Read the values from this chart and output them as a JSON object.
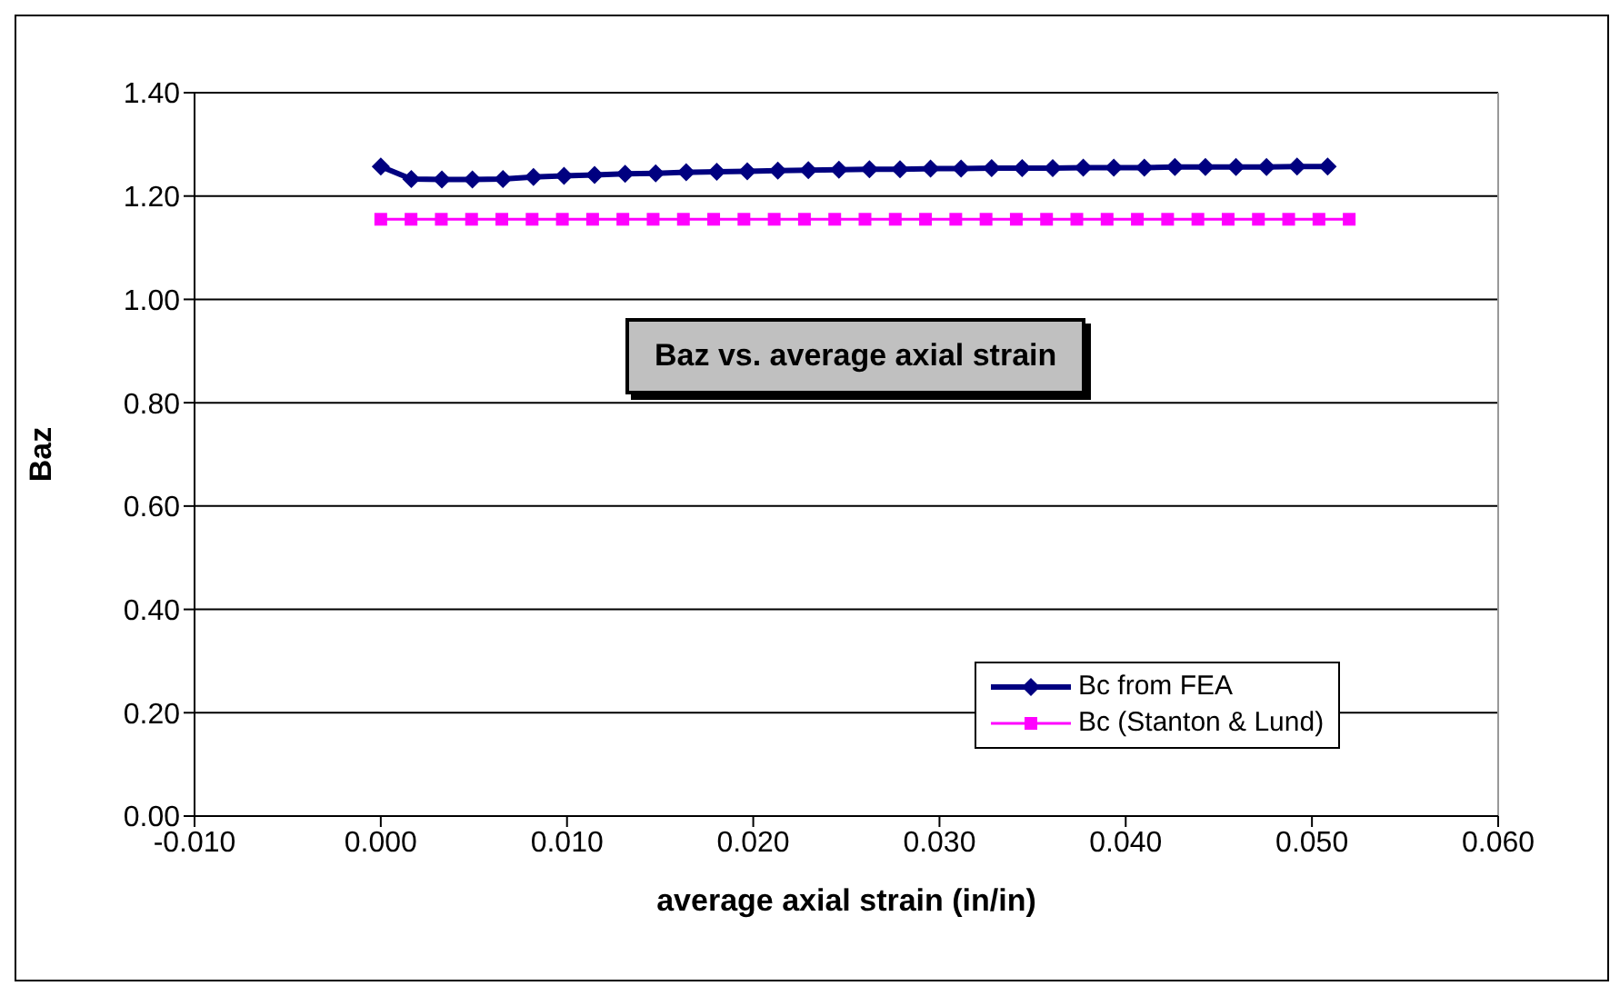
{
  "chart_data": {
    "type": "line",
    "title": "Baz vs. average axial strain",
    "xlabel": "average axial strain (in/in)",
    "ylabel": "Baz",
    "xlim": [
      -0.01,
      0.06
    ],
    "xticks": [
      {
        "value": -0.01,
        "label": "-0.010"
      },
      {
        "value": 0,
        "label": "0.000"
      },
      {
        "value": 0.01,
        "label": "0.010"
      },
      {
        "value": 0.02,
        "label": "0.020"
      },
      {
        "value": 0.03,
        "label": "0.030"
      },
      {
        "value": 0.04,
        "label": "0.040"
      },
      {
        "value": 0.05,
        "label": "0.050"
      },
      {
        "value": 0.06,
        "label": "0.060"
      }
    ],
    "ylim": [
      0,
      1.4
    ],
    "yticks": [
      {
        "value": 0,
        "label": "0.00"
      },
      {
        "value": 0.2,
        "label": "0.20"
      },
      {
        "value": 0.4,
        "label": "0.40"
      },
      {
        "value": 0.6,
        "label": "0.60"
      },
      {
        "value": 0.8,
        "label": "0.80"
      },
      {
        "value": 1,
        "label": "1.00"
      },
      {
        "value": 1.2,
        "label": "1.20"
      },
      {
        "value": 1.4,
        "label": "1.40"
      }
    ],
    "grid": "y",
    "legend": "bottom right",
    "line_style": "solid",
    "series": [
      {
        "name": "Bc from FEA",
        "color": "#000080",
        "marker": "diamond",
        "x": [
          0,
          0.00164,
          0.00328,
          0.00492,
          0.00656,
          0.0082,
          0.00984,
          0.01148,
          0.01312,
          0.01476,
          0.0164,
          0.01804,
          0.01968,
          0.02132,
          0.02296,
          0.0246,
          0.02624,
          0.02788,
          0.02952,
          0.03116,
          0.0328,
          0.03444,
          0.03608,
          0.03772,
          0.03936,
          0.041,
          0.04264,
          0.04428,
          0.04592,
          0.04756,
          0.0492,
          0.05084
        ],
        "values": [
          1.257,
          1.233,
          1.232,
          1.232,
          1.233,
          1.237,
          1.239,
          1.241,
          1.243,
          1.244,
          1.246,
          1.247,
          1.248,
          1.249,
          1.25,
          1.251,
          1.252,
          1.252,
          1.253,
          1.253,
          1.254,
          1.254,
          1.254,
          1.255,
          1.255,
          1.255,
          1.256,
          1.256,
          1.256,
          1.256,
          1.257,
          1.257
        ]
      },
      {
        "name": "Bc (Stanton & Lund)",
        "color": "#ff00ff",
        "marker": "square",
        "x": [
          0,
          0.001625,
          0.00325,
          0.004875,
          0.0065,
          0.008125,
          0.00975,
          0.011375,
          0.013,
          0.014625,
          0.01625,
          0.017875,
          0.0195,
          0.021125,
          0.02275,
          0.024375,
          0.026,
          0.027625,
          0.02925,
          0.030875,
          0.0325,
          0.034125,
          0.03575,
          0.037375,
          0.039,
          0.040625,
          0.04225,
          0.043875,
          0.0455,
          0.047125,
          0.04875,
          0.050375,
          0.052
        ],
        "values": [
          1.155,
          1.155,
          1.155,
          1.155,
          1.155,
          1.155,
          1.155,
          1.155,
          1.155,
          1.155,
          1.155,
          1.155,
          1.155,
          1.155,
          1.155,
          1.155,
          1.155,
          1.155,
          1.155,
          1.155,
          1.155,
          1.155,
          1.155,
          1.155,
          1.155,
          1.155,
          1.155,
          1.155,
          1.155,
          1.155,
          1.155,
          1.155,
          1.155
        ]
      }
    ]
  }
}
